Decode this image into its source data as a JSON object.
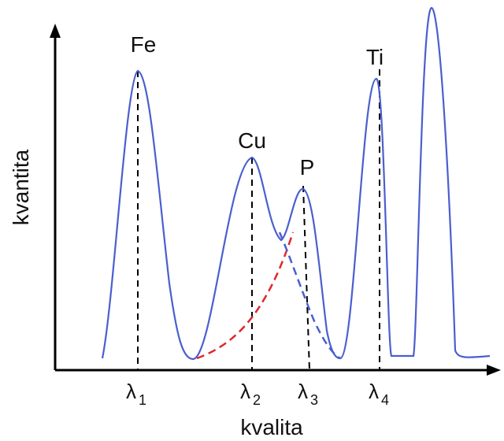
{
  "axes": {
    "x_label": "kvalita",
    "y_label": "kvantita"
  },
  "peaks": [
    {
      "element": "Fe",
      "wavelength_symbol": "λ",
      "wavelength_index": "1"
    },
    {
      "element": "Cu",
      "wavelength_symbol": "λ",
      "wavelength_index": "2"
    },
    {
      "element": "P",
      "wavelength_symbol": "λ",
      "wavelength_index": "3"
    },
    {
      "element": "Ti",
      "wavelength_symbol": "λ",
      "wavelength_index": "4"
    }
  ],
  "colors": {
    "spectrum_line": "#4a5fcf",
    "baseline_fit": "#e0262b",
    "axis": "#000000",
    "guide_line": "#000000"
  }
}
